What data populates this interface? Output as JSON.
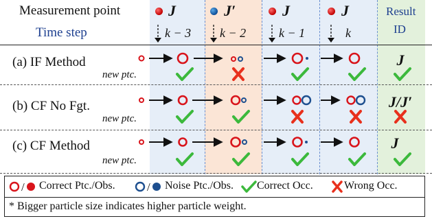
{
  "header": {
    "measurement_label": "Measurement point",
    "time_step_label": "Time step",
    "result_label_1": "Result",
    "result_label_2": "ID",
    "columns": [
      {
        "symbol": "J",
        "dot_color": "red",
        "step": "k − 3"
      },
      {
        "symbol": "J′",
        "dot_color": "blue",
        "step": "k − 2"
      },
      {
        "symbol": "J",
        "dot_color": "red",
        "step": "k − 1"
      },
      {
        "symbol": "J",
        "dot_color": "red",
        "step": "k"
      }
    ]
  },
  "rows": [
    {
      "label": "(a) IF Method",
      "sub": "new ptc.",
      "result": "J",
      "checks": [
        "correct",
        "wrong",
        "correct",
        "correct"
      ],
      "result_check": "correct"
    },
    {
      "label": "(b) CF No Fgt.",
      "sub": "new ptc.",
      "result": "J/J′",
      "checks": [
        "correct",
        "correct",
        "wrong",
        "wrong"
      ],
      "result_check": "wrong"
    },
    {
      "label": "(c) CF Method",
      "sub": "new ptc.",
      "result": "J",
      "checks": [
        "correct",
        "correct",
        "correct",
        "correct"
      ],
      "result_check": "correct"
    }
  ],
  "legend": {
    "correct_ptc": "Correct Ptc./Obs.",
    "noise_ptc": "Noise Ptc./Obs.",
    "correct_occ": "Correct Occ.",
    "wrong_occ": "Wrong Occ.",
    "note": "* Bigger particle size indicates higher particle weight."
  },
  "colors": {
    "red": "#d9141b",
    "blue": "#1d4f8f",
    "green": "#3cb93c",
    "bg_blue": "#e6eef8",
    "bg_orange": "#fbe5d6",
    "bg_green": "#e3f1dc"
  }
}
